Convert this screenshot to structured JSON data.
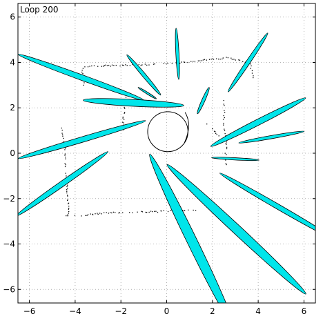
{
  "chart_data": {
    "type": "scatter",
    "title": "Loop 200",
    "xlabel": "",
    "ylabel": "",
    "xlim": [
      -6.5,
      6.5
    ],
    "ylim": [
      -6.6,
      6.6
    ],
    "grid": true,
    "xticks": [
      -6,
      -4,
      -2,
      0,
      2,
      4,
      6
    ],
    "yticks": [
      -6,
      -4,
      -2,
      0,
      2,
      4,
      6
    ],
    "xtick_labels": [
      "−6",
      "−4",
      "−2",
      "0",
      "2",
      "4",
      "6"
    ],
    "ytick_labels": [
      "−6",
      "−4",
      "−2",
      "0",
      "2",
      "4",
      "6"
    ],
    "colors": {
      "ellipse_fill": "#00e5ea",
      "outline": "#000000",
      "grid": "#9a9a9a"
    },
    "robot": {
      "center": [
        0.05,
        0.95
      ],
      "radius": 0.88,
      "heading_deg": -35
    },
    "landmark_ellipses": [
      {
        "center": [
          -3.75,
          3.35
        ],
        "semi_major": 2.92,
        "semi_minor": 0.12,
        "angle_deg": -20.0
      },
      {
        "center": [
          -1.45,
          2.22
        ],
        "semi_major": 2.2,
        "semi_minor": 0.15,
        "angle_deg": -3.0
      },
      {
        "center": [
          -3.7,
          0.6
        ],
        "semi_major": 2.9,
        "semi_minor": 0.12,
        "angle_deg": 16.5
      },
      {
        "center": [
          -4.57,
          -1.35
        ],
        "semi_major": 2.45,
        "semi_minor": 0.12,
        "angle_deg": 35.0
      },
      {
        "center": [
          -1.0,
          3.45
        ],
        "semi_major": 1.15,
        "semi_minor": 0.08,
        "angle_deg": -50.0
      },
      {
        "center": [
          -0.85,
          2.65
        ],
        "semi_major": 0.47,
        "semi_minor": 0.04,
        "angle_deg": -32.0
      },
      {
        "center": [
          0.47,
          4.38
        ],
        "semi_major": 1.12,
        "semi_minor": 0.07,
        "angle_deg": -87.0
      },
      {
        "center": [
          1.6,
          2.32
        ],
        "semi_major": 0.63,
        "semi_minor": 0.07,
        "angle_deg": 66.0
      },
      {
        "center": [
          3.55,
          4.0
        ],
        "semi_major": 1.55,
        "semi_minor": 0.09,
        "angle_deg": 56.0
      },
      {
        "center": [
          4.0,
          1.37
        ],
        "semi_major": 2.33,
        "semi_minor": 0.13,
        "angle_deg": 27.0
      },
      {
        "center": [
          4.58,
          0.71
        ],
        "semi_major": 1.45,
        "semi_minor": 0.07,
        "angle_deg": 10.0
      },
      {
        "center": [
          3.0,
          -0.25
        ],
        "semi_major": 1.04,
        "semi_minor": 0.05,
        "angle_deg": -3.0
      },
      {
        "center": [
          4.85,
          -2.35
        ],
        "semi_major": 2.92,
        "semi_minor": 0.11,
        "angle_deg": -30.0
      },
      {
        "center": [
          3.05,
          -3.35
        ],
        "semi_major": 4.15,
        "semi_minor": 0.2,
        "angle_deg": -43.0
      },
      {
        "center": [
          1.1,
          -3.85
        ],
        "semi_major": 4.2,
        "semi_minor": 0.22,
        "angle_deg": -64.0
      }
    ],
    "wall_segments": [
      [
        [
          -3.6,
          3.85
        ],
        [
          -0.6,
          3.93
        ],
        [
          1.0,
          4.05
        ],
        [
          2.2,
          4.18
        ],
        [
          2.6,
          4.22
        ],
        [
          3.2,
          4.12
        ],
        [
          3.6,
          4.0
        ],
        [
          3.7,
          3.7
        ],
        [
          3.8,
          3.2
        ]
      ],
      [
        [
          -3.7,
          3.75
        ],
        [
          -3.7,
          3.45
        ],
        [
          -3.6,
          3.1
        ],
        [
          -3.7,
          2.9
        ]
      ],
      [
        [
          -4.6,
          1.1
        ],
        [
          -4.5,
          0.5
        ],
        [
          -4.45,
          -0.2
        ],
        [
          -4.4,
          -1.0
        ],
        [
          -4.35,
          -1.8
        ],
        [
          -4.3,
          -2.6
        ],
        [
          -4.4,
          -2.85
        ]
      ],
      [
        [
          -4.4,
          -2.75
        ],
        [
          -3.5,
          -2.7
        ],
        [
          -2.5,
          -2.6
        ],
        [
          -1.5,
          -2.58
        ],
        [
          -0.3,
          -2.55
        ],
        [
          0.5,
          -2.5
        ],
        [
          1.3,
          -2.48
        ]
      ],
      [
        [
          2.5,
          2.4
        ],
        [
          2.5,
          1.8
        ],
        [
          2.45,
          1.2
        ],
        [
          2.6,
          0.6
        ],
        [
          2.55,
          -0.2
        ],
        [
          2.6,
          -0.7
        ]
      ],
      [
        [
          1.75,
          1.3
        ],
        [
          2.05,
          1.0
        ],
        [
          2.3,
          0.7
        ]
      ],
      [
        [
          -1.8,
          2.5
        ],
        [
          -1.9,
          1.7
        ],
        [
          -1.95,
          0.9
        ]
      ]
    ]
  }
}
